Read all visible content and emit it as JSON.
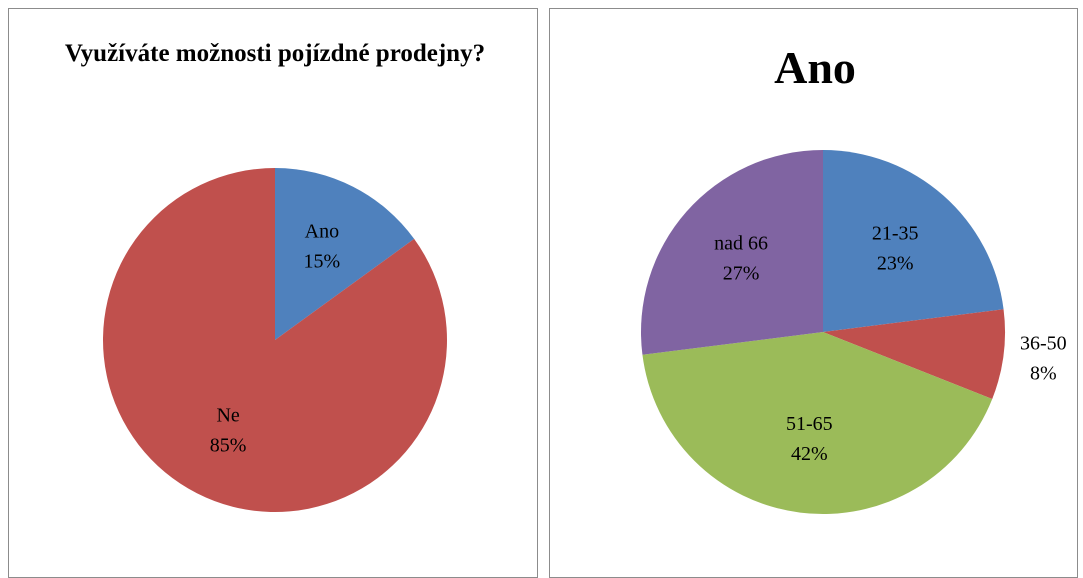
{
  "chart_data": [
    {
      "type": "pie",
      "title": "Využíváte možnosti pojízdné prodejny?",
      "categories": [
        "Ano",
        "Ne"
      ],
      "values": [
        15,
        85
      ],
      "value_labels": [
        "15%",
        "85%"
      ],
      "colors": [
        "#4f81bd",
        "#c0504d"
      ]
    },
    {
      "type": "pie",
      "title": "Ano",
      "categories": [
        "21-35",
        "36-50",
        "51-65",
        "nad 66"
      ],
      "values": [
        23,
        8,
        42,
        27
      ],
      "value_labels": [
        "23%",
        "8%",
        "42%",
        "27%"
      ],
      "colors": [
        "#4f81bd",
        "#c0504d",
        "#9bbb59",
        "#8064a2"
      ]
    }
  ]
}
